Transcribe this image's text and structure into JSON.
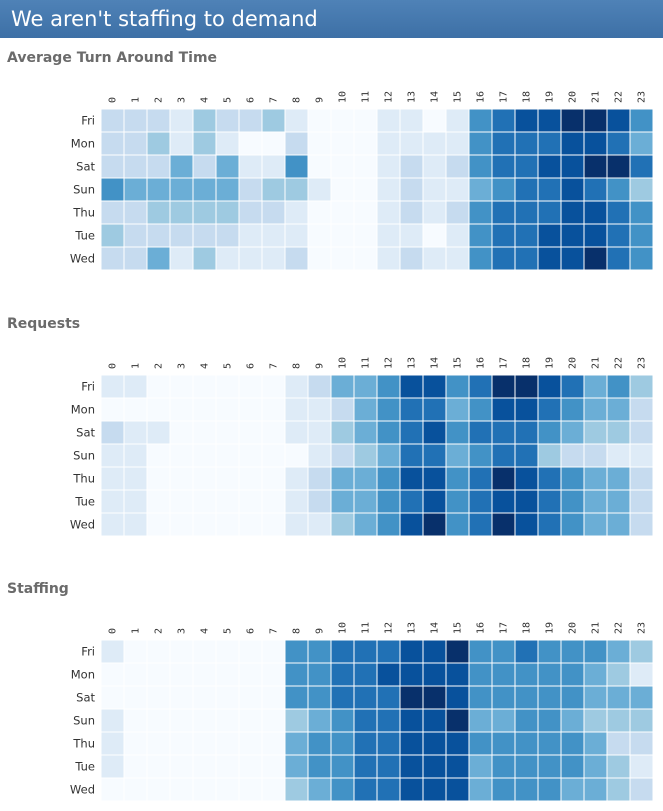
{
  "header": {
    "title": "We aren't staffing to demand"
  },
  "palette": [
    "#f7fbff",
    "#deebf7",
    "#c6dbef",
    "#9ecae1",
    "#6baed6",
    "#4292c6",
    "#2171b5",
    "#08519c",
    "#08306b"
  ],
  "chart_data": [
    {
      "type": "heatmap",
      "title": "Average Turn Around Time",
      "x": [
        "0",
        "1",
        "2",
        "3",
        "4",
        "5",
        "6",
        "7",
        "8",
        "9",
        "10",
        "11",
        "12",
        "13",
        "14",
        "15",
        "16",
        "17",
        "18",
        "19",
        "20",
        "21",
        "22",
        "23"
      ],
      "y": [
        "Fri",
        "Mon",
        "Sat",
        "Sun",
        "Thu",
        "Tue",
        "Wed"
      ],
      "value_range": [
        0,
        8
      ],
      "values": [
        [
          2,
          2,
          2,
          1,
          3,
          2,
          2,
          3,
          1,
          0,
          0,
          0,
          1,
          1,
          0,
          1,
          5,
          6,
          7,
          7,
          8,
          8,
          7,
          5
        ],
        [
          2,
          2,
          3,
          1,
          3,
          1,
          0,
          0,
          2,
          0,
          0,
          0,
          1,
          1,
          1,
          1,
          5,
          6,
          6,
          6,
          7,
          7,
          6,
          4
        ],
        [
          2,
          2,
          2,
          4,
          2,
          4,
          1,
          1,
          5,
          0,
          0,
          0,
          1,
          2,
          1,
          2,
          5,
          6,
          6,
          7,
          7,
          8,
          8,
          6
        ],
        [
          5,
          4,
          4,
          4,
          4,
          4,
          2,
          3,
          3,
          1,
          0,
          0,
          1,
          2,
          1,
          1,
          4,
          5,
          6,
          6,
          7,
          6,
          5,
          3
        ],
        [
          2,
          2,
          3,
          3,
          3,
          3,
          2,
          2,
          1,
          0,
          0,
          0,
          1,
          2,
          1,
          2,
          5,
          6,
          6,
          6,
          7,
          7,
          6,
          5
        ],
        [
          3,
          2,
          2,
          2,
          2,
          2,
          1,
          1,
          1,
          0,
          0,
          0,
          1,
          1,
          0,
          1,
          5,
          6,
          6,
          7,
          7,
          7,
          6,
          5
        ],
        [
          2,
          2,
          4,
          1,
          3,
          1,
          1,
          1,
          2,
          0,
          0,
          0,
          1,
          2,
          1,
          1,
          5,
          6,
          6,
          7,
          7,
          8,
          6,
          5
        ]
      ]
    },
    {
      "type": "heatmap",
      "title": "Requests",
      "x": [
        "0",
        "1",
        "2",
        "3",
        "4",
        "5",
        "6",
        "7",
        "8",
        "9",
        "10",
        "11",
        "12",
        "13",
        "14",
        "15",
        "16",
        "17",
        "18",
        "19",
        "20",
        "21",
        "22",
        "23"
      ],
      "y": [
        "Fri",
        "Mon",
        "Sat",
        "Sun",
        "Thu",
        "Tue",
        "Wed"
      ],
      "value_range": [
        0,
        8
      ],
      "values": [
        [
          1,
          1,
          0,
          0,
          0,
          0,
          0,
          0,
          1,
          2,
          4,
          4,
          5,
          7,
          7,
          5,
          6,
          8,
          8,
          7,
          6,
          4,
          5,
          3
        ],
        [
          0,
          0,
          0,
          0,
          0,
          0,
          0,
          0,
          1,
          1,
          2,
          4,
          5,
          6,
          6,
          4,
          5,
          7,
          7,
          6,
          5,
          4,
          4,
          2
        ],
        [
          2,
          1,
          1,
          0,
          0,
          0,
          0,
          0,
          1,
          1,
          3,
          4,
          5,
          6,
          7,
          5,
          6,
          6,
          6,
          5,
          4,
          3,
          3,
          2
        ],
        [
          1,
          1,
          0,
          0,
          0,
          0,
          0,
          0,
          0,
          1,
          2,
          3,
          4,
          6,
          6,
          4,
          5,
          6,
          6,
          3,
          2,
          2,
          1,
          1
        ],
        [
          1,
          1,
          0,
          0,
          0,
          0,
          0,
          0,
          1,
          2,
          4,
          4,
          5,
          7,
          7,
          5,
          6,
          8,
          7,
          6,
          5,
          4,
          4,
          2
        ],
        [
          1,
          1,
          0,
          0,
          0,
          0,
          0,
          0,
          1,
          2,
          4,
          4,
          5,
          6,
          7,
          5,
          6,
          7,
          7,
          6,
          5,
          4,
          4,
          2
        ],
        [
          1,
          1,
          0,
          0,
          0,
          0,
          0,
          0,
          1,
          1,
          3,
          4,
          5,
          7,
          8,
          5,
          6,
          8,
          7,
          6,
          5,
          4,
          4,
          2
        ]
      ]
    },
    {
      "type": "heatmap",
      "title": "Staffing",
      "x": [
        "0",
        "1",
        "2",
        "3",
        "4",
        "5",
        "6",
        "7",
        "8",
        "9",
        "10",
        "11",
        "12",
        "13",
        "14",
        "15",
        "16",
        "17",
        "18",
        "19",
        "20",
        "21",
        "22",
        "23"
      ],
      "y": [
        "Fri",
        "Mon",
        "Sat",
        "Sun",
        "Thu",
        "Tue",
        "Wed"
      ],
      "value_range": [
        0,
        8
      ],
      "values": [
        [
          1,
          0,
          0,
          0,
          0,
          0,
          0,
          0,
          5,
          5,
          6,
          6,
          6,
          7,
          7,
          8,
          5,
          5,
          6,
          5,
          5,
          5,
          4,
          3
        ],
        [
          0,
          0,
          0,
          0,
          0,
          0,
          0,
          0,
          5,
          5,
          6,
          6,
          7,
          7,
          7,
          7,
          5,
          5,
          5,
          5,
          5,
          4,
          3,
          1
        ],
        [
          0,
          0,
          0,
          0,
          0,
          0,
          0,
          0,
          5,
          5,
          6,
          6,
          6,
          8,
          8,
          7,
          5,
          5,
          5,
          5,
          5,
          4,
          4,
          4
        ],
        [
          1,
          0,
          0,
          0,
          0,
          0,
          0,
          0,
          3,
          4,
          5,
          6,
          6,
          7,
          7,
          8,
          4,
          4,
          5,
          5,
          4,
          3,
          3,
          3
        ],
        [
          1,
          0,
          0,
          0,
          0,
          0,
          0,
          0,
          4,
          5,
          5,
          6,
          6,
          7,
          7,
          7,
          5,
          5,
          5,
          5,
          5,
          4,
          2,
          2
        ],
        [
          1,
          0,
          0,
          0,
          0,
          0,
          0,
          0,
          4,
          5,
          5,
          6,
          6,
          7,
          7,
          7,
          4,
          5,
          5,
          5,
          5,
          4,
          3,
          1
        ],
        [
          0,
          0,
          0,
          0,
          0,
          0,
          0,
          0,
          3,
          4,
          5,
          6,
          6,
          7,
          7,
          7,
          4,
          5,
          5,
          5,
          4,
          4,
          3,
          2
        ]
      ]
    }
  ]
}
